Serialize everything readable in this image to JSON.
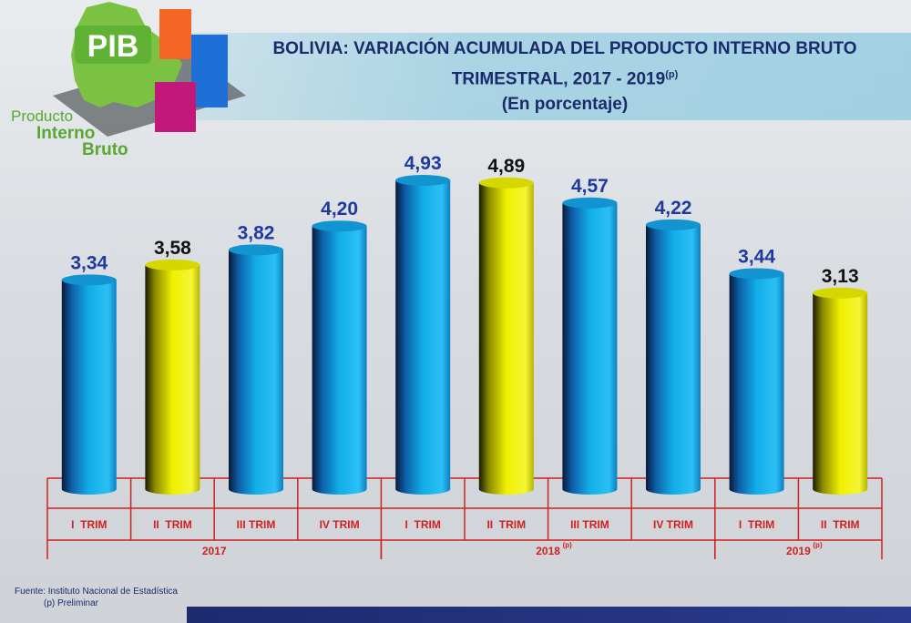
{
  "logo": {
    "badge": "PIB",
    "line1": "Producto",
    "line2": "Interno",
    "line3": "Bruto"
  },
  "header": {
    "title_line1": "BOLIVIA: VARIACIÓN ACUMULADA DEL PRODUCTO INTERNO BRUTO",
    "title_line2": "TRIMESTRAL, 2017 - 2019",
    "title_line2_sup": "(p)",
    "subtitle": "(En porcentaje)"
  },
  "footer": {
    "source": "Fuente: Instituto Nacional de Estadística",
    "note": "(p) Preliminar"
  },
  "colors": {
    "blue_bar": "#12aee8",
    "yellow_bar": "#f0f000",
    "label_blue": "#1f3a9e",
    "label_dark": "#111111",
    "axis_red": "#d02020"
  },
  "chart_data": {
    "type": "bar",
    "title": "BOLIVIA: VARIACIÓN ACUMULADA DEL PRODUCTO INTERNO BRUTO TRIMESTRAL, 2017 - 2019(p)",
    "subtitle": "(En porcentaje)",
    "categories": [
      "I  TRIM",
      "II  TRIM",
      "III TRIM",
      "IV TRIM",
      "I  TRIM",
      "II  TRIM",
      "III TRIM",
      "IV TRIM",
      "I  TRIM",
      "II  TRIM"
    ],
    "values": [
      3.34,
      3.58,
      3.82,
      4.2,
      4.93,
      4.89,
      4.57,
      4.22,
      3.44,
      3.13
    ],
    "value_labels": [
      "3,34",
      "3,58",
      "3,82",
      "4,20",
      "4,93",
      "4,89",
      "4,57",
      "4,22",
      "3,44",
      "3,13"
    ],
    "highlight": [
      false,
      true,
      false,
      false,
      false,
      true,
      false,
      false,
      false,
      true
    ],
    "groups": [
      {
        "label": "2017",
        "sup": "",
        "start": 0,
        "end": 3
      },
      {
        "label": "2018",
        "sup": "(p)",
        "start": 4,
        "end": 7
      },
      {
        "label": "2019",
        "sup": "(p)",
        "start": 8,
        "end": 9
      }
    ],
    "ylim": [
      0,
      5.1
    ],
    "grid": false,
    "legend": "none"
  }
}
